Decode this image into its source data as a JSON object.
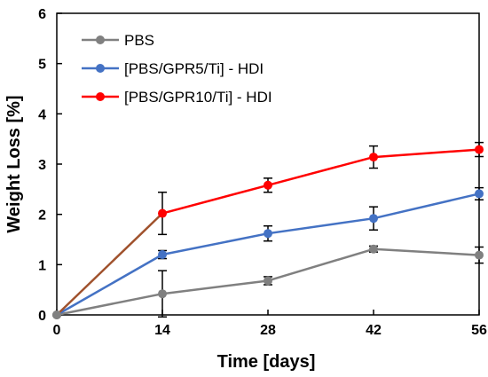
{
  "chart_data": {
    "type": "line",
    "xlabel": "Time [days]",
    "ylabel": "Weight Loss [%]",
    "xlim": [
      0,
      56
    ],
    "ylim": [
      0,
      6
    ],
    "x_ticks": [
      "0",
      "14",
      "28",
      "42",
      "56"
    ],
    "y_ticks": [
      "0",
      "1",
      "2",
      "3",
      "4",
      "5",
      "6"
    ],
    "grid": false,
    "legend_position": "top-left",
    "x": [
      0,
      14,
      28,
      42,
      56
    ],
    "series": [
      {
        "name": "PBS",
        "color": "#808080",
        "values": [
          0,
          0.42,
          0.68,
          1.31,
          1.19
        ],
        "errors": [
          0,
          0.46,
          0.08,
          0.06,
          0.16
        ]
      },
      {
        "name": "[PBS/GPR5/Ti] - HDI",
        "color": "#4472C4",
        "values": [
          0,
          1.2,
          1.62,
          1.92,
          2.41
        ],
        "errors": [
          0,
          0.08,
          0.15,
          0.23,
          0.12
        ]
      },
      {
        "name": "[PBS/GPR10/Ti] - HDI",
        "color": "#FF0000",
        "values": [
          0,
          2.02,
          2.58,
          3.14,
          3.29
        ],
        "errors": [
          0,
          0.42,
          0.14,
          0.22,
          0.14
        ]
      }
    ],
    "first_segment_color": "#A0522D"
  }
}
